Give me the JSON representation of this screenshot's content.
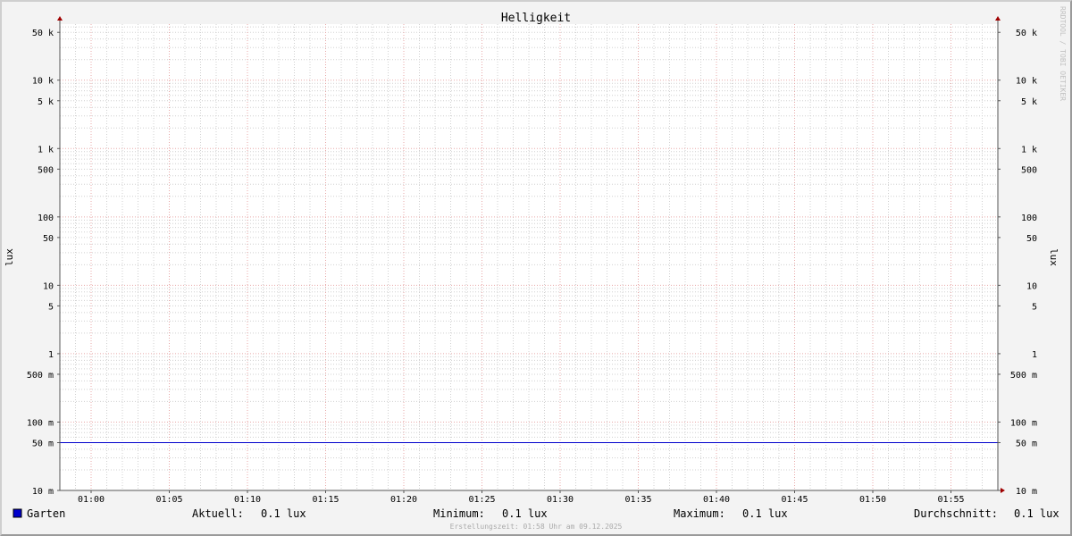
{
  "chart_data": {
    "type": "line",
    "title": "Helligkeit",
    "ylabel": "lux",
    "ylabel_right": "lux",
    "yscale": "log",
    "ylim": [
      0.01,
      66000
    ],
    "xlim": [
      "00:58",
      "01:58"
    ],
    "grid": true,
    "y_ticks": [
      {
        "value": 50000,
        "label": "50 k"
      },
      {
        "value": 10000,
        "label": "10 k"
      },
      {
        "value": 5000,
        "label": "5 k"
      },
      {
        "value": 1000,
        "label": "1 k"
      },
      {
        "value": 500,
        "label": "500"
      },
      {
        "value": 100,
        "label": "100"
      },
      {
        "value": 50,
        "label": "50"
      },
      {
        "value": 10,
        "label": "10"
      },
      {
        "value": 5,
        "label": "5"
      },
      {
        "value": 1,
        "label": "1"
      },
      {
        "value": 0.5,
        "label": "500 m"
      },
      {
        "value": 0.1,
        "label": "100 m"
      },
      {
        "value": 0.05,
        "label": "50 m"
      },
      {
        "value": 0.01,
        "label": "10 m"
      }
    ],
    "x_ticks": [
      "01:00",
      "01:05",
      "01:10",
      "01:15",
      "01:20",
      "01:25",
      "01:30",
      "01:35",
      "01:40",
      "01:45",
      "01:50",
      "01:55"
    ],
    "series": [
      {
        "name": "Garten",
        "color": "#0000cc",
        "x": [
          "00:58",
          "01:58"
        ],
        "values": [
          0.05,
          0.05
        ]
      }
    ],
    "legend": {
      "position": "bottom",
      "aktuell_label": "Aktuell:",
      "aktuell": "0.1 lux",
      "minimum_label": "Minimum:",
      "minimum": "0.1 lux",
      "maximum_label": "Maximum:",
      "maximum": "0.1 lux",
      "durchschnitt_label": "Durchschnitt:",
      "durchschnitt": "0.1 lux"
    },
    "footer": "Erstellungszeit: 01:58 Uhr am 09.12.2025",
    "watermark": "RRDTOOL / TOBI OETIKER"
  }
}
